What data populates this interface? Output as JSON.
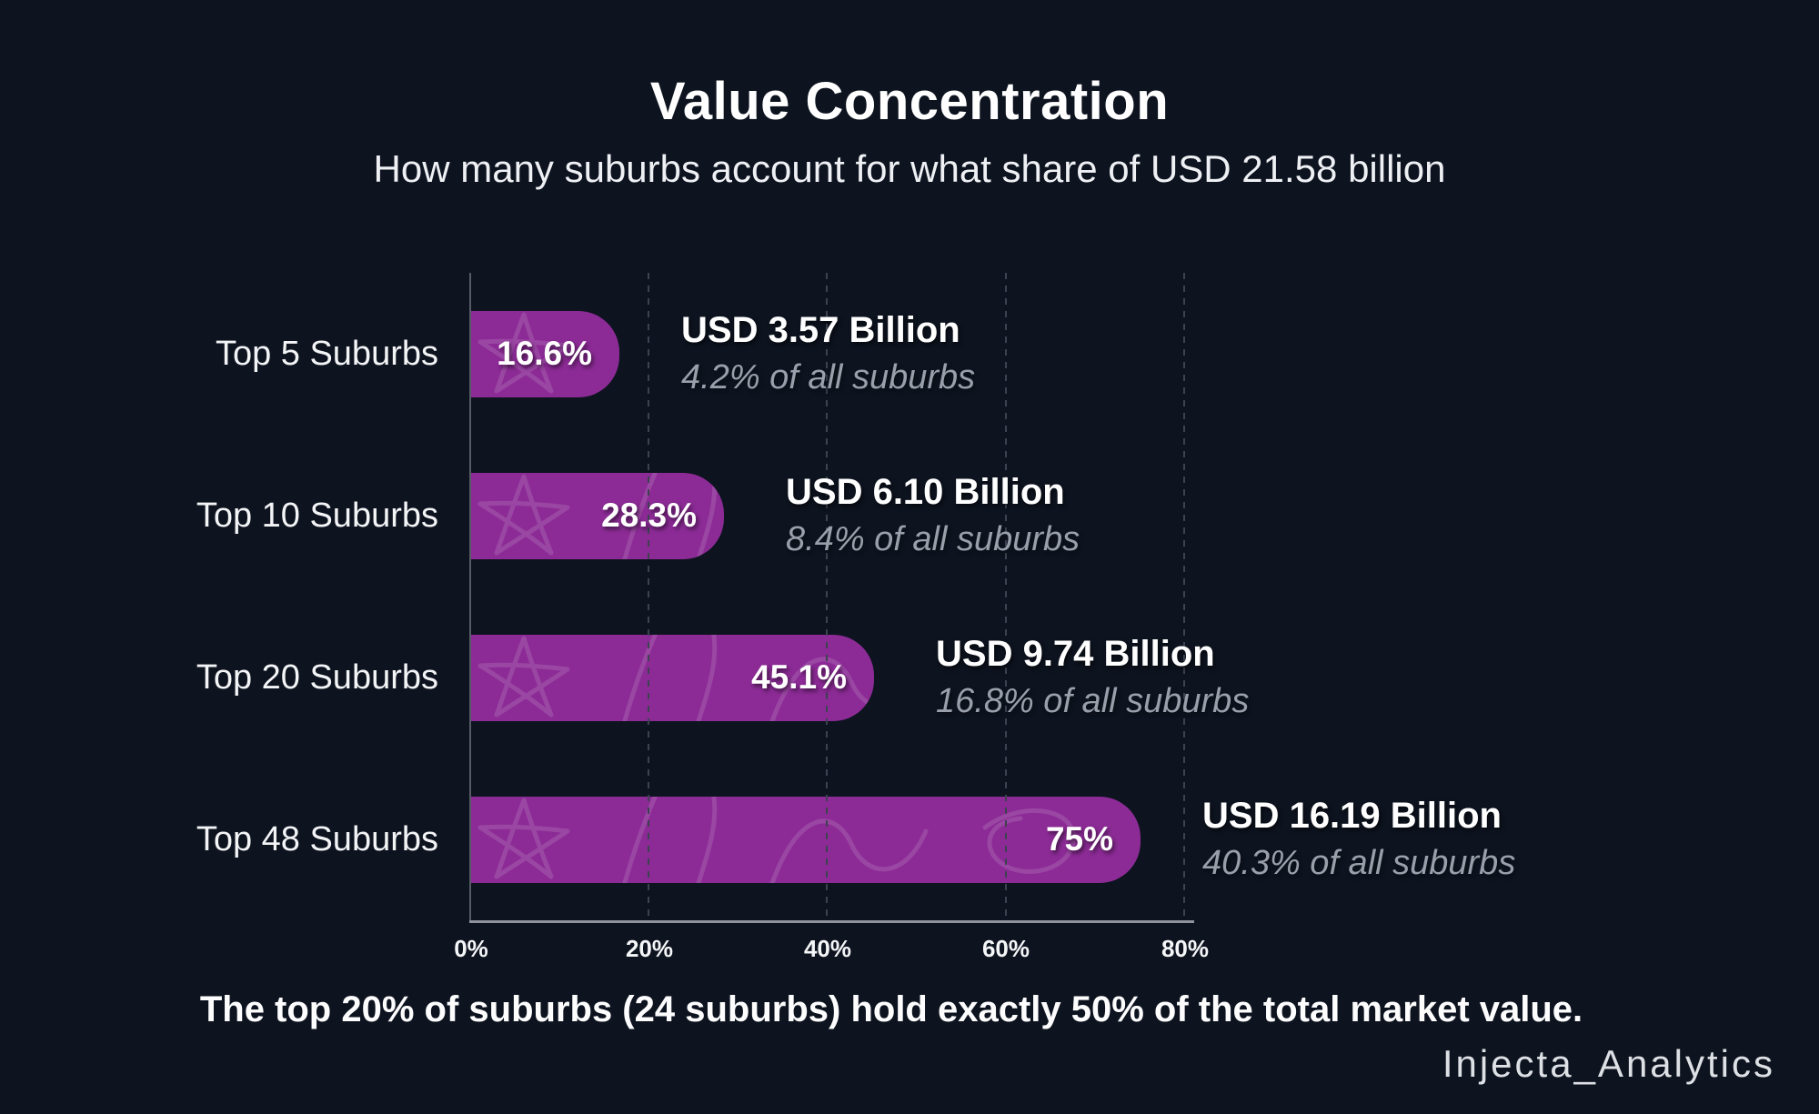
{
  "header": {
    "title": "Value Concentration",
    "subtitle": "How many suburbs account for what share of USD 21.58 billion"
  },
  "footer": {
    "note": "The top 20% of suburbs (24 suburbs) hold exactly 50% of the total market value.",
    "watermark": "Injecta_Analytics"
  },
  "colors": {
    "background": "#0d131f",
    "bar": "#8c2b96",
    "annotation_muted": "#9aa0ab",
    "text": "#ffffff"
  },
  "chart_data": {
    "type": "bar",
    "orientation": "horizontal",
    "title": "Value Concentration",
    "subtitle": "How many suburbs account for what share of USD 21.58 billion",
    "total_market_value": "USD 21.58 billion",
    "categories": [
      "Top 5 Suburbs",
      "Top 10 Suburbs",
      "Top 20 Suburbs",
      "Top 48 Suburbs"
    ],
    "values": [
      16.6,
      28.3,
      45.1,
      75
    ],
    "xlabel": "",
    "ylabel": "",
    "xlim": [
      0,
      80
    ],
    "grid": "dashed-vertical",
    "x_axis": {
      "min": 0,
      "max": 80,
      "ticks": [
        "0%",
        "20%",
        "40%",
        "60%",
        "80%"
      ]
    },
    "rows": [
      {
        "label": "Top 5 Suburbs",
        "pct": 16.6,
        "pct_label": "16.6%",
        "value_label": "USD 3.57 Billion",
        "share_label": "4.2% of all suburbs"
      },
      {
        "label": "Top 10 Suburbs",
        "pct": 28.3,
        "pct_label": "28.3%",
        "value_label": "USD 6.10 Billion",
        "share_label": "8.4% of all suburbs"
      },
      {
        "label": "Top 20 Suburbs",
        "pct": 45.1,
        "pct_label": "45.1%",
        "value_label": "USD 9.74 Billion",
        "share_label": "16.8% of all suburbs"
      },
      {
        "label": "Top 48 Suburbs",
        "pct": 75,
        "pct_label": "75%",
        "value_label": "USD 16.19 Billion",
        "share_label": "40.3% of all suburbs"
      }
    ]
  }
}
